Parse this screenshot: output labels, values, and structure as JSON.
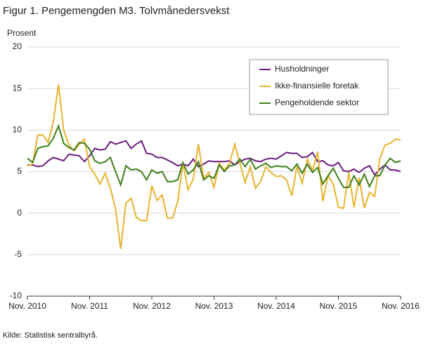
{
  "chart_data": {
    "type": "line",
    "title": "Figur 1. Pengemengden M3. Tolvmånedersvekst",
    "y_label": "Prosent",
    "source": "Kilde: Statistisk sentralbyrå.",
    "categories": [
      "Nov. 2010",
      null,
      null,
      null,
      null,
      null,
      null,
      null,
      null,
      null,
      null,
      null,
      "Nov. 2011",
      null,
      null,
      null,
      null,
      null,
      null,
      null,
      null,
      null,
      null,
      null,
      "Nov. 2012",
      null,
      null,
      null,
      null,
      null,
      null,
      null,
      null,
      null,
      null,
      null,
      "Nov. 2013",
      null,
      null,
      null,
      null,
      null,
      null,
      null,
      null,
      null,
      null,
      null,
      "Nov. 2014",
      null,
      null,
      null,
      null,
      null,
      null,
      null,
      null,
      null,
      null,
      null,
      "Nov. 2015",
      null,
      null,
      null,
      null,
      null,
      null,
      null,
      null,
      null,
      null,
      null,
      "Nov. 2016"
    ],
    "series": [
      {
        "name": "Husholdninger",
        "color": "#6a1b80",
        "values": [
          5.8,
          5.8,
          5.6,
          5.7,
          6.3,
          6.7,
          6.5,
          6.3,
          7.1,
          7.0,
          6.9,
          6.2,
          6.9,
          7.8,
          7.6,
          7.7,
          8.6,
          8.3,
          8.5,
          8.7,
          7.8,
          8.3,
          8.7,
          7.2,
          7.1,
          6.7,
          6.7,
          6.4,
          6.1,
          5.7,
          5.9,
          5.7,
          6.5,
          5.6,
          5.9,
          6.3,
          6.2,
          6.2,
          6.2,
          6.3,
          5.8,
          6.2,
          6.5,
          6.6,
          6.3,
          6.2,
          6.5,
          6.6,
          6.5,
          6.9,
          7.3,
          7.2,
          7.2,
          6.7,
          6.8,
          7.3,
          6.2,
          6.3,
          5.8,
          5.7,
          6.1,
          5.1,
          5.0,
          5.3,
          4.9,
          5.4,
          5.7,
          4.6,
          5.3,
          5.8,
          5.2,
          5.2,
          5.0
        ]
      },
      {
        "name": "Ikke-finansielle foretak",
        "color": "#e8b330",
        "values": [
          5.7,
          5.9,
          9.4,
          9.4,
          8.5,
          11,
          15.5,
          10,
          8.2,
          7.5,
          8.3,
          8.9,
          5.6,
          4.7,
          3.5,
          4.8,
          3.0,
          0.5,
          -4.3,
          1.2,
          1.8,
          -0.5,
          -0.9,
          -0.9,
          3.3,
          1.5,
          2.2,
          -0.6,
          -0.6,
          1.4,
          6.0,
          2.8,
          4.1,
          8.3,
          4.2,
          4.9,
          3.1,
          6.0,
          5.2,
          6.0,
          8.3,
          6.0,
          3.7,
          5.6,
          3.0,
          3.8,
          5.6,
          4.9,
          4.4,
          4.5,
          4.0,
          2.1,
          5.6,
          3.6,
          6.5,
          5.1,
          7.4,
          1.4,
          4.5,
          3.5,
          0.7,
          0.6,
          4.9,
          0.7,
          4.3,
          0.6,
          2.5,
          2.0,
          6.6,
          8.2,
          8.4,
          8.9,
          8.8
        ]
      },
      {
        "name": "Pengeholdende sektor",
        "color": "#3f7f1a",
        "values": [
          6.6,
          6.1,
          7.8,
          8.0,
          8.1,
          9.0,
          10.5,
          8.4,
          7.9,
          7.6,
          8.5,
          8.4,
          7.7,
          6.3,
          6.0,
          6.2,
          6.7,
          5.0,
          3.4,
          5.7,
          5.2,
          5.3,
          5.0,
          4.0,
          5.2,
          4.8,
          5.0,
          3.8,
          3.8,
          4.0,
          6.1,
          4.7,
          5.2,
          6.2,
          4.0,
          4.5,
          4.2,
          5.8,
          5.0,
          5.7,
          5.8,
          6.5,
          5.6,
          6.5,
          5.3,
          5.7,
          6.0,
          5.5,
          5.7,
          5.6,
          5.6,
          5.1,
          5.9,
          4.8,
          5.9,
          4.9,
          5.5,
          3.5,
          4.5,
          5.4,
          4.2,
          3.1,
          3.1,
          4.5,
          3.4,
          4.7,
          3.2,
          4.5,
          4.5,
          5.8,
          6.6,
          6.1,
          6.3
        ]
      }
    ],
    "ylim": [
      -10,
      20
    ],
    "yticks": [
      -10,
      -5,
      0,
      5,
      10,
      15,
      20
    ],
    "grid": true,
    "legend": "top-right"
  }
}
